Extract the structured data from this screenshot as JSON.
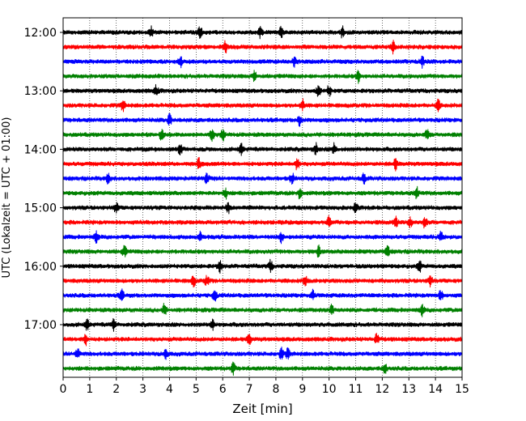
{
  "chart_data": {
    "type": "line",
    "title": "",
    "xlabel": "Zeit  [min]",
    "ylabel": "UTC (Lokalzeit = UTC + 01:00)",
    "xlim": [
      0,
      15
    ],
    "x_ticks": [
      0,
      1,
      2,
      3,
      4,
      5,
      6,
      7,
      8,
      9,
      10,
      11,
      12,
      13,
      14,
      15
    ],
    "y_tick_labels": [
      "12:00",
      "13:00",
      "14:00",
      "15:00",
      "16:00",
      "17:00"
    ],
    "grid": "vertical dotted lines at each minute",
    "trace_interval_minutes": 15,
    "trace_color_cycle": [
      "#000000",
      "#ff0000",
      "#0000ff",
      "#008000"
    ],
    "traces": [
      {
        "start": "12:00",
        "events_min": [
          3.3,
          5.15,
          7.4,
          8.2,
          10.5
        ]
      },
      {
        "start": "12:15",
        "events_min": [
          6.1,
          12.4
        ]
      },
      {
        "start": "12:30",
        "events_min": [
          4.4,
          8.7,
          13.5
        ]
      },
      {
        "start": "12:45",
        "events_min": [
          7.2,
          11.1
        ]
      },
      {
        "start": "13:00",
        "events_min": [
          9.6,
          10.0,
          3.5
        ]
      },
      {
        "start": "13:15",
        "events_min": [
          2.25,
          9.0,
          14.1
        ]
      },
      {
        "start": "13:30",
        "events_min": [
          8.9,
          4.0
        ]
      },
      {
        "start": "13:45",
        "events_min": [
          3.7,
          5.6,
          6.0,
          13.7
        ]
      },
      {
        "start": "14:00",
        "events_min": [
          4.4,
          6.7,
          9.5,
          10.2
        ]
      },
      {
        "start": "14:15",
        "events_min": [
          5.1,
          8.8,
          12.5
        ]
      },
      {
        "start": "14:30",
        "events_min": [
          1.7,
          5.4,
          8.6,
          11.3
        ]
      },
      {
        "start": "14:45",
        "events_min": [
          6.1,
          8.9,
          13.3
        ]
      },
      {
        "start": "15:00",
        "events_min": [
          2.0,
          6.2,
          11.0
        ]
      },
      {
        "start": "15:15",
        "events_min": [
          10.0,
          12.5,
          13.05,
          13.6
        ]
      },
      {
        "start": "15:30",
        "events_min": [
          1.25,
          5.15,
          8.2,
          14.2
        ]
      },
      {
        "start": "15:45",
        "events_min": [
          2.3,
          9.6,
          12.2
        ]
      },
      {
        "start": "16:00",
        "events_min": [
          5.9,
          7.8,
          13.4
        ]
      },
      {
        "start": "16:15",
        "events_min": [
          4.9,
          5.4,
          9.1,
          13.8
        ]
      },
      {
        "start": "16:30",
        "events_min": [
          2.2,
          5.7,
          9.4,
          14.2
        ]
      },
      {
        "start": "16:45",
        "events_min": [
          3.8,
          10.1,
          13.5
        ]
      },
      {
        "start": "17:00",
        "events_min": [
          0.9,
          1.9,
          5.6
        ]
      },
      {
        "start": "17:15",
        "events_min": [
          0.85,
          7.0,
          11.8
        ]
      },
      {
        "start": "17:30",
        "events_min": [
          0.55,
          3.85,
          8.2,
          8.45
        ]
      },
      {
        "start": "17:45",
        "events_min": [
          6.4,
          12.1
        ]
      }
    ]
  }
}
